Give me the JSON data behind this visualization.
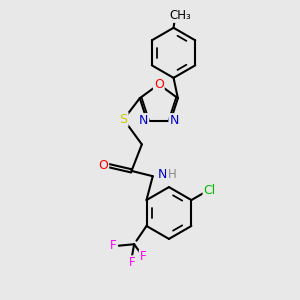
{
  "bg_color": "#e8e8e8",
  "bond_color": "#000000",
  "atom_colors": {
    "N": "#0000cc",
    "O": "#ff0000",
    "S": "#cccc00",
    "Cl": "#00bb00",
    "F": "#ff00ff",
    "H": "#888888",
    "C": "#000000"
  },
  "font_size": 9,
  "line_width": 1.5
}
